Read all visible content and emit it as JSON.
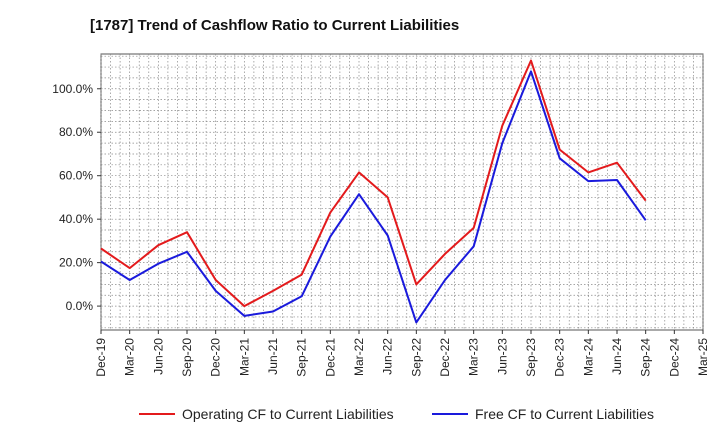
{
  "chart_data": {
    "type": "line",
    "title": "[1787]  Trend of Cashflow Ratio to Current Liabilities",
    "xlabel": "",
    "ylabel": "",
    "ylim": [
      -11,
      116
    ],
    "y_ticks": [
      0,
      20,
      40,
      60,
      80,
      100
    ],
    "y_tick_labels": [
      "0.0%",
      "20.0%",
      "40.0%",
      "60.0%",
      "80.0%",
      "100.0%"
    ],
    "x_tick_labels": [
      "Dec-19",
      "Mar-20",
      "Jun-20",
      "Sep-20",
      "Dec-20",
      "Mar-21",
      "Jun-21",
      "Sep-21",
      "Dec-21",
      "Mar-22",
      "Jun-22",
      "Sep-22",
      "Dec-22",
      "Mar-23",
      "Jun-23",
      "Sep-23",
      "Dec-23",
      "Mar-24",
      "Jun-24",
      "Sep-24",
      "Dec-24",
      "Mar-25"
    ],
    "grid": true,
    "legend_position": "bottom",
    "series": [
      {
        "name": "Operating CF to Current Liabilities",
        "color": "#e31a1c",
        "values": [
          26.5,
          17.5,
          28,
          34,
          12,
          0,
          7,
          14.5,
          43,
          61.5,
          50,
          10,
          24,
          36,
          83,
          113,
          72,
          61.5,
          66,
          48.5
        ]
      },
      {
        "name": "Free CF to Current Liabilities",
        "color": "#1a1adc",
        "values": [
          20.5,
          12,
          19.5,
          25,
          7,
          -4.5,
          -2.5,
          4.5,
          32,
          51.5,
          32.5,
          -7.5,
          12,
          27.5,
          75,
          108,
          68,
          57.5,
          58,
          39.5
        ]
      }
    ]
  }
}
